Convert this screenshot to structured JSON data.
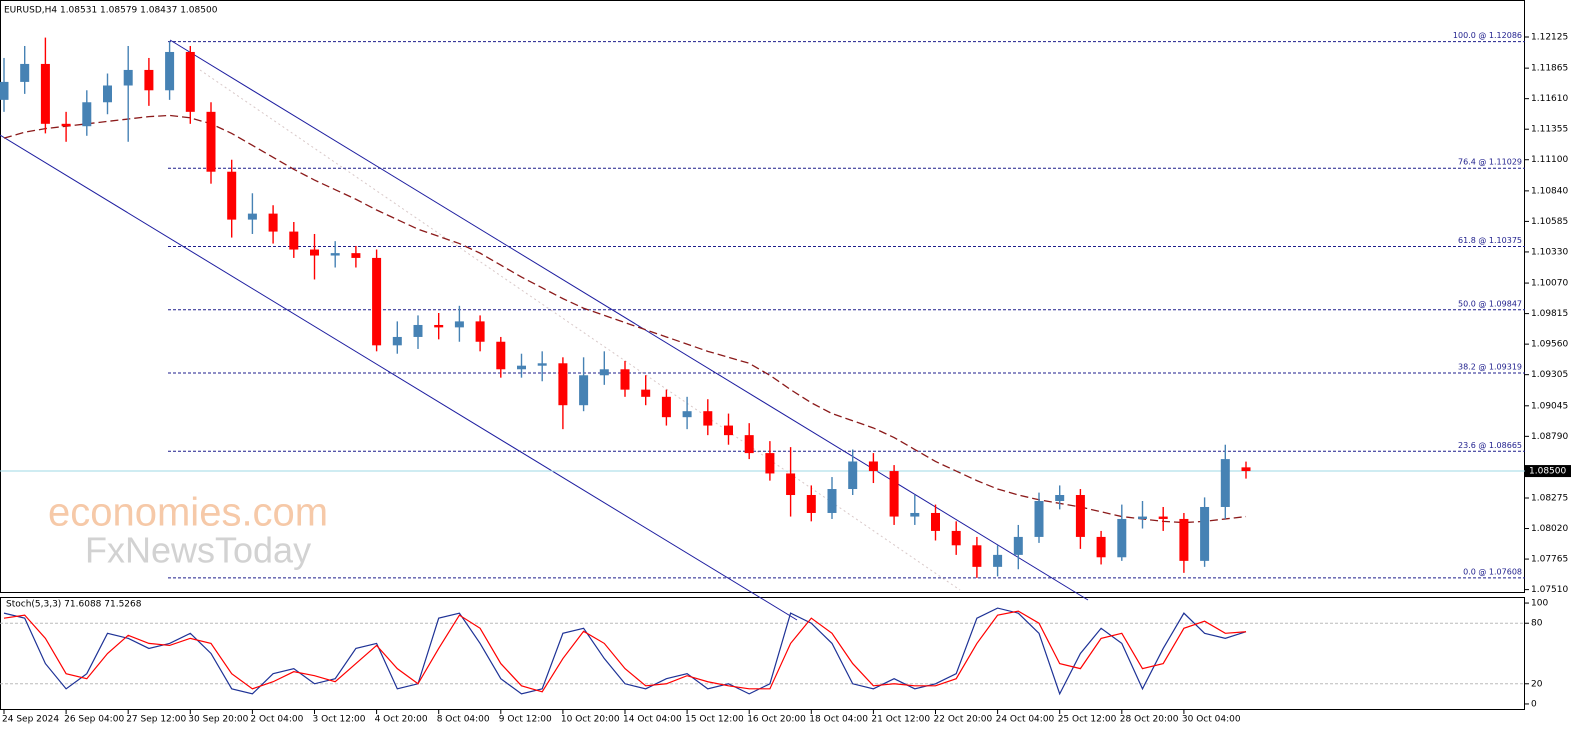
{
  "chart_data": [
    {
      "type": "candlestick",
      "title": "EURUSD,H4  1.08531 1.08579 1.08437 1.08500",
      "watermark": [
        "economies.com",
        "FxNewsToday"
      ],
      "up_color": "#4682b4",
      "down_color": "#ff0000",
      "ylim": [
        1.0749,
        1.12434
      ],
      "yticks": [
        1.12125,
        1.11865,
        {
          "value": 1.1161,
          "label": "1.11610"
        },
        1.11355,
        {
          "value": 1.111,
          "label": "1.11100"
        },
        {
          "value": 1.1084,
          "label": "1.10840"
        },
        1.10585,
        {
          "value": 1.1033,
          "label": "1.10330"
        },
        {
          "value": 1.1007,
          "label": "1.10070"
        },
        1.09815,
        {
          "value": 1.0956,
          "label": "1.09560"
        },
        1.09305,
        1.09045,
        {
          "value": 1.0879,
          "label": "1.08790"
        },
        1.08275,
        {
          "value": 1.0802,
          "label": "1.08020"
        },
        1.07765,
        {
          "value": 1.0751,
          "label": "1.07510"
        }
      ],
      "current_price": {
        "value": 1.085,
        "label": "1.08500"
      },
      "fib_levels": [
        {
          "value": 1.12086,
          "label": "100.0 @ 1.12086"
        },
        {
          "value": 1.11029,
          "label": "76.4 @ 1.11029"
        },
        {
          "value": 1.10375,
          "label": "61.8 @ 1.10375"
        },
        {
          "value": 1.09847,
          "label": "50.0 @ 1.09847"
        },
        {
          "value": 1.09319,
          "label": "38.2 @ 1.09319"
        },
        {
          "value": 1.08665,
          "label": "23.6 @ 1.08665"
        },
        {
          "value": 1.07608,
          "label": "0.0 @ 1.07608"
        }
      ],
      "categories": [
        "24 Sep 2024",
        null,
        null,
        "26 Sep 04:00",
        null,
        null,
        "27 Sep 12:00",
        null,
        null,
        "30 Sep 20:00",
        null,
        null,
        "2 Oct 04:00",
        null,
        null,
        "3 Oct 12:00",
        null,
        null,
        "4 Oct 20:00",
        null,
        null,
        "8 Oct 04:00",
        null,
        null,
        "9 Oct 12:00",
        null,
        null,
        "10 Oct 20:00",
        null,
        null,
        "14 Oct 04:00",
        null,
        null,
        "15 Oct 12:00",
        null,
        null,
        "16 Oct 20:00",
        null,
        null,
        "18 Oct 04:00",
        null,
        null,
        "21 Oct 12:00",
        null,
        null,
        "22 Oct 20:00",
        null,
        null,
        "24 Oct 04:00",
        null,
        null,
        "25 Oct 12:00",
        null,
        null,
        "28 Oct 20:00",
        null,
        null,
        "30 Oct 04:00",
        null,
        null,
        null
      ],
      "ohlc": [
        [
          1.116,
          1.1195,
          1.115,
          1.1175
        ],
        [
          1.1175,
          1.1205,
          1.1165,
          1.119
        ],
        [
          1.119,
          1.1212,
          1.1132,
          1.114
        ],
        [
          1.114,
          1.115,
          1.1125,
          1.1138
        ],
        [
          1.1138,
          1.1168,
          1.113,
          1.1158
        ],
        [
          1.1158,
          1.1182,
          1.1148,
          1.1172
        ],
        [
          1.1172,
          1.1205,
          1.1125,
          1.1185
        ],
        [
          1.1185,
          1.1195,
          1.1155,
          1.1168
        ],
        [
          1.1168,
          1.12086,
          1.116,
          1.12
        ],
        [
          1.12,
          1.1205,
          1.114,
          1.115
        ],
        [
          1.115,
          1.1158,
          1.109,
          1.11
        ],
        [
          1.11,
          1.111,
          1.1045,
          1.106
        ],
        [
          1.106,
          1.1082,
          1.1048,
          1.1065
        ],
        [
          1.1065,
          1.1072,
          1.104,
          1.105
        ],
        [
          1.105,
          1.1058,
          1.1028,
          1.1035
        ],
        [
          1.1035,
          1.1048,
          1.101,
          1.103
        ],
        [
          1.103,
          1.1042,
          1.102,
          1.1032
        ],
        [
          1.1032,
          1.1038,
          1.102,
          1.1028
        ],
        [
          1.1028,
          1.1035,
          1.095,
          1.0955
        ],
        [
          1.0955,
          1.0975,
          1.0948,
          1.0962
        ],
        [
          1.0962,
          1.098,
          1.0952,
          1.0972
        ],
        [
          1.0972,
          1.0982,
          1.096,
          1.097
        ],
        [
          1.097,
          1.0988,
          1.0958,
          1.0975
        ],
        [
          1.0975,
          1.098,
          1.095,
          1.0958
        ],
        [
          1.0958,
          1.0962,
          1.0928,
          1.0935
        ],
        [
          1.0935,
          1.0948,
          1.0928,
          1.0938
        ],
        [
          1.0938,
          1.095,
          1.0925,
          1.094
        ],
        [
          1.094,
          1.0945,
          1.0885,
          1.0905
        ],
        [
          1.0905,
          1.0945,
          1.09,
          1.093
        ],
        [
          1.093,
          1.095,
          1.0922,
          1.0935
        ],
        [
          1.0935,
          1.0942,
          1.0912,
          1.0918
        ],
        [
          1.0918,
          1.093,
          1.0905,
          1.0912
        ],
        [
          1.0912,
          1.0918,
          1.0888,
          1.0895
        ],
        [
          1.0895,
          1.0912,
          1.0885,
          1.09
        ],
        [
          1.09,
          1.091,
          1.088,
          1.0888
        ],
        [
          1.0888,
          1.0898,
          1.0872,
          1.088
        ],
        [
          1.088,
          1.089,
          1.086,
          1.0865
        ],
        [
          1.0865,
          1.0875,
          1.0842,
          1.0848
        ],
        [
          1.0848,
          1.087,
          1.0812,
          1.083
        ],
        [
          1.083,
          1.0838,
          1.0808,
          1.0815
        ],
        [
          1.0815,
          1.0845,
          1.081,
          1.0835
        ],
        [
          1.0835,
          1.0868,
          1.083,
          1.0858
        ],
        [
          1.0858,
          1.0865,
          1.084,
          1.085
        ],
        [
          1.085,
          1.0855,
          1.0805,
          1.0812
        ],
        [
          1.0812,
          1.083,
          1.0805,
          1.0815
        ],
        [
          1.0815,
          1.0822,
          1.0792,
          1.08
        ],
        [
          1.08,
          1.0808,
          1.078,
          1.0788
        ],
        [
          1.0788,
          1.0795,
          1.07608,
          1.077
        ],
        [
          1.077,
          1.0788,
          1.0762,
          1.078
        ],
        [
          1.078,
          1.0805,
          1.0768,
          1.0795
        ],
        [
          1.0795,
          1.0832,
          1.079,
          1.0825
        ],
        [
          1.0825,
          1.0838,
          1.0818,
          1.083
        ],
        [
          1.083,
          1.0835,
          1.0785,
          1.0795
        ],
        [
          1.0795,
          1.08,
          1.0772,
          1.0778
        ],
        [
          1.0778,
          1.0822,
          1.0775,
          1.081
        ],
        [
          1.081,
          1.0825,
          1.0802,
          1.0812
        ],
        [
          1.0812,
          1.082,
          1.08,
          1.081
        ],
        [
          1.081,
          1.0815,
          1.0765,
          1.0775
        ],
        [
          1.0775,
          1.0828,
          1.077,
          1.082
        ],
        [
          1.082,
          1.0872,
          1.081,
          1.086
        ],
        [
          1.08531,
          1.08579,
          1.08437,
          1.085
        ]
      ],
      "ma_color": "#8b1a1a",
      "ma": [
        1.1128,
        1.1133,
        1.1136,
        1.1138,
        1.114,
        1.1142,
        1.1144,
        1.1146,
        1.1147,
        1.1145,
        1.114,
        1.1132,
        1.1122,
        1.1112,
        1.1102,
        1.1093,
        1.1085,
        1.1077,
        1.1068,
        1.106,
        1.1052,
        1.1046,
        1.104,
        1.1032,
        1.1022,
        1.1012,
        1.1003,
        1.0994,
        1.0986,
        1.098,
        1.0974,
        1.0968,
        1.0962,
        1.0956,
        1.095,
        1.0945,
        1.094,
        1.093,
        1.0918,
        1.0907,
        1.0898,
        1.0892,
        1.0886,
        1.0878,
        1.0868,
        1.0858,
        1.085,
        1.0842,
        1.0835,
        1.083,
        1.0826,
        1.0823,
        1.082,
        1.0816,
        1.0812,
        1.081,
        1.0808,
        1.0807,
        1.0808,
        1.081,
        1.0812
      ]
    },
    {
      "type": "line",
      "title": "Stoch(5,3,3) 71.6088 71.5268",
      "ylim": [
        -5,
        105
      ],
      "yticks": [
        0,
        20,
        80,
        100
      ],
      "levels": [
        20,
        80
      ],
      "series": [
        {
          "color": "#1e3296",
          "values": [
            90,
            85,
            40,
            15,
            30,
            70,
            65,
            55,
            60,
            70,
            50,
            15,
            10,
            30,
            35,
            20,
            25,
            55,
            60,
            15,
            20,
            85,
            90,
            60,
            25,
            10,
            15,
            70,
            75,
            45,
            20,
            15,
            25,
            30,
            15,
            20,
            10,
            20,
            90,
            80,
            60,
            20,
            15,
            25,
            15,
            20,
            30,
            85,
            95,
            90,
            70,
            10,
            50,
            75,
            60,
            15,
            55,
            90,
            70,
            65,
            71.6088
          ]
        },
        {
          "color": "#ff0000",
          "values": [
            85,
            88,
            65,
            30,
            25,
            50,
            68,
            60,
            58,
            65,
            60,
            30,
            15,
            22,
            32,
            28,
            22,
            40,
            58,
            35,
            20,
            55,
            88,
            75,
            40,
            18,
            12,
            45,
            72,
            60,
            35,
            18,
            20,
            28,
            22,
            18,
            15,
            15,
            60,
            85,
            70,
            40,
            18,
            20,
            18,
            18,
            25,
            60,
            88,
            92,
            80,
            40,
            35,
            65,
            70,
            35,
            40,
            75,
            82,
            70,
            71.5268
          ]
        }
      ]
    }
  ]
}
